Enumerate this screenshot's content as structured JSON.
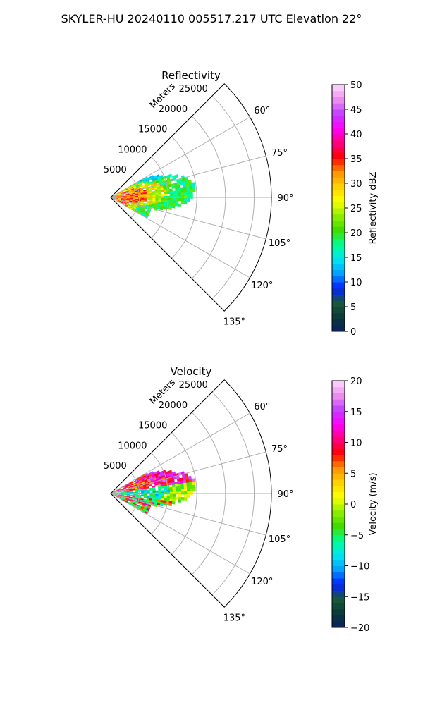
{
  "figure": {
    "suptitle": "SKYLER-HU  20240110  005517.217 UTC Elevation 22°"
  },
  "chart_data": [
    {
      "type": "heatmap",
      "projection": "polar-sector",
      "title": "Reflectivity",
      "radial_label": "Meters",
      "r_max": 28000,
      "r_ticks": [
        5000,
        10000,
        15000,
        20000,
        25000
      ],
      "r_tick_labels": [
        "5000",
        "10000",
        "15000",
        "20000",
        "25000"
      ],
      "azimuth_range_deg": [
        45,
        135
      ],
      "azimuth_ticks": [
        60,
        75,
        90,
        105,
        120,
        135
      ],
      "azimuth_tick_labels": [
        "60°",
        "75°",
        "90°",
        "105°",
        "120°",
        "135°"
      ],
      "grid": true,
      "data_extent": {
        "azimuth_deg": [
          60,
          118
        ],
        "max_range_m": [
          7000,
          14500
        ]
      },
      "colorbar": {
        "label": "Reflectivity dBZ",
        "vmin": 0,
        "vmax": 50,
        "ticks": [
          0,
          5,
          10,
          15,
          20,
          25,
          30,
          35,
          40,
          45,
          50
        ],
        "tick_labels": [
          "0",
          "5",
          "10",
          "15",
          "20",
          "25",
          "30",
          "35",
          "40",
          "45",
          "50"
        ],
        "colormap": [
          "#0b1f5c",
          "#0a3a3a",
          "#1a5a3a",
          "#0020ff",
          "#00a0ff",
          "#00e8f0",
          "#00ff90",
          "#40dd00",
          "#90f000",
          "#ffff00",
          "#ffd000",
          "#ff9000",
          "#ff0000",
          "#ff0080",
          "#ff00ff",
          "#c040ff",
          "#ee90ee",
          "#ffd8ff"
        ]
      },
      "field_summary": "near-range 20-40 dBZ (yellow/orange/red/magenta), outer 15-25 dBZ (green)"
    },
    {
      "type": "heatmap",
      "projection": "polar-sector",
      "title": "Velocity",
      "radial_label": "Meters",
      "r_max": 28000,
      "r_ticks": [
        5000,
        10000,
        15000,
        20000,
        25000
      ],
      "r_tick_labels": [
        "5000",
        "10000",
        "15000",
        "20000",
        "25000"
      ],
      "azimuth_range_deg": [
        45,
        135
      ],
      "azimuth_ticks": [
        60,
        75,
        90,
        105,
        120,
        135
      ],
      "azimuth_tick_labels": [
        "60°",
        "75°",
        "90°",
        "105°",
        "120°",
        "135°"
      ],
      "grid": true,
      "data_extent": {
        "azimuth_deg": [
          60,
          118
        ],
        "max_range_m": [
          7000,
          14500
        ]
      },
      "colorbar": {
        "label": "Velocity (m/s)",
        "vmin": -20,
        "vmax": 20,
        "ticks": [
          -20,
          -15,
          -10,
          -5,
          0,
          5,
          10,
          15,
          20
        ],
        "tick_labels": [
          "−20",
          "−15",
          "−10",
          "−5",
          "0",
          "5",
          "10",
          "15",
          "20"
        ],
        "colormap": [
          "#0b1f5c",
          "#0a3a3a",
          "#1a5a3a",
          "#0020ff",
          "#00a0ff",
          "#00e8f0",
          "#00ff90",
          "#40dd00",
          "#90f000",
          "#ffff00",
          "#ffd000",
          "#ff9000",
          "#ff0000",
          "#ff0080",
          "#ff00ff",
          "#c040ff",
          "#ee90ee",
          "#ffd8ff"
        ]
      },
      "field_summary": "northern sector positive 5-15 m/s (orange/red/magenta), central band negative -5 to -12 m/s (green/cyan), southern sector mixed with positive pockets"
    }
  ]
}
